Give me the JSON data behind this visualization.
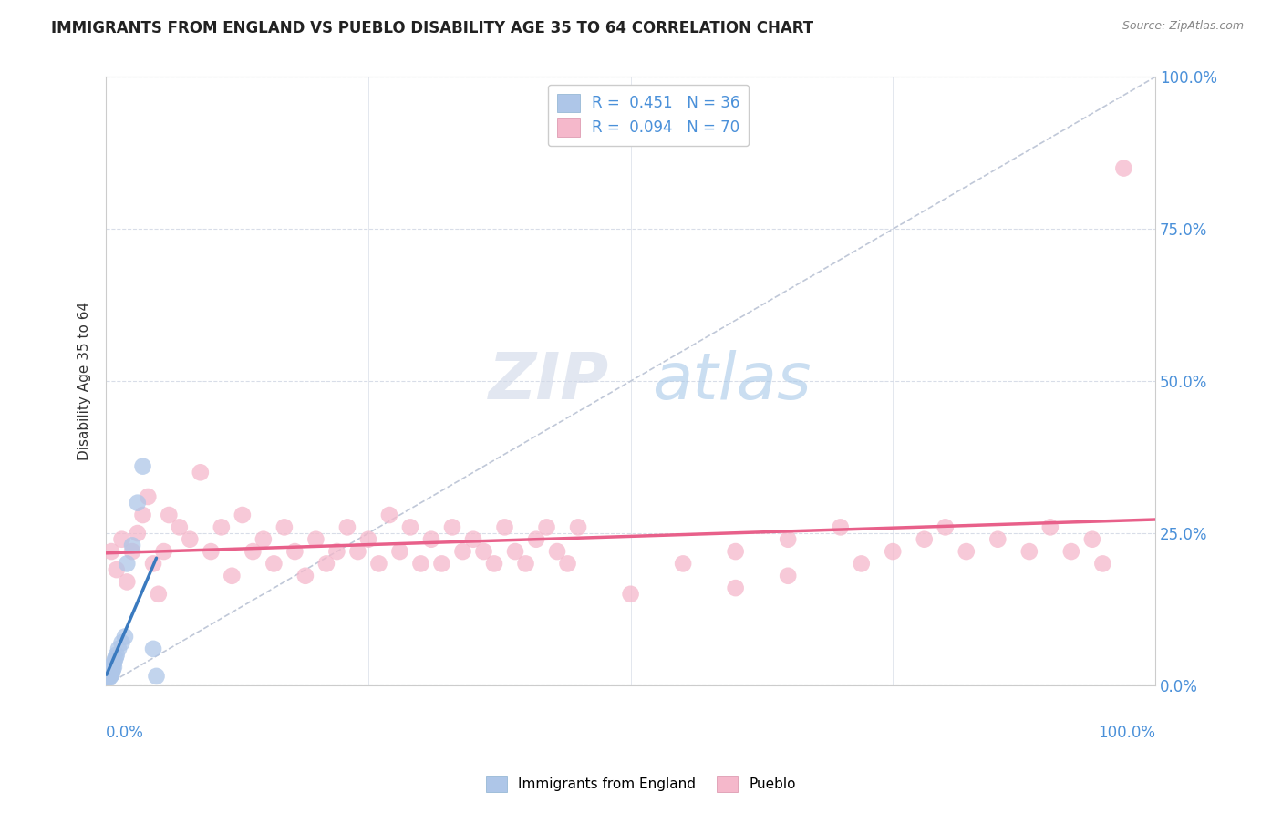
{
  "title": "IMMIGRANTS FROM ENGLAND VS PUEBLO DISABILITY AGE 35 TO 64 CORRELATION CHART",
  "source": "Source: ZipAtlas.com",
  "ylabel": "Disability Age 35 to 64",
  "ylabel_right_ticks": [
    "0.0%",
    "25.0%",
    "50.0%",
    "75.0%",
    "100.0%"
  ],
  "ylabel_right_vals": [
    0.0,
    25.0,
    50.0,
    75.0,
    100.0
  ],
  "legend_label_blue": "Immigrants from England",
  "legend_label_pink": "Pueblo",
  "R_blue": "0.451",
  "N_blue": "36",
  "R_pink": "0.094",
  "N_pink": "70",
  "blue_color": "#aec6e8",
  "pink_color": "#f5b8cb",
  "blue_line_color": "#3a7abf",
  "pink_line_color": "#e8608a",
  "scatter_blue": [
    [
      0.05,
      2.0
    ],
    [
      0.08,
      1.5
    ],
    [
      0.1,
      1.8
    ],
    [
      0.12,
      2.2
    ],
    [
      0.15,
      1.2
    ],
    [
      0.18,
      2.5
    ],
    [
      0.2,
      1.0
    ],
    [
      0.22,
      1.5
    ],
    [
      0.25,
      2.8
    ],
    [
      0.28,
      1.8
    ],
    [
      0.3,
      2.0
    ],
    [
      0.32,
      1.6
    ],
    [
      0.35,
      2.4
    ],
    [
      0.38,
      1.4
    ],
    [
      0.4,
      2.1
    ],
    [
      0.42,
      1.9
    ],
    [
      0.45,
      2.6
    ],
    [
      0.48,
      2.3
    ],
    [
      0.5,
      1.7
    ],
    [
      0.55,
      2.0
    ],
    [
      0.6,
      3.0
    ],
    [
      0.65,
      2.5
    ],
    [
      0.7,
      3.5
    ],
    [
      0.75,
      3.0
    ],
    [
      0.8,
      4.0
    ],
    [
      0.9,
      4.5
    ],
    [
      1.0,
      5.0
    ],
    [
      1.2,
      6.0
    ],
    [
      1.5,
      7.0
    ],
    [
      1.8,
      8.0
    ],
    [
      2.0,
      20.0
    ],
    [
      2.5,
      23.0
    ],
    [
      3.0,
      30.0
    ],
    [
      3.5,
      36.0
    ],
    [
      4.5,
      6.0
    ],
    [
      4.8,
      1.5
    ]
  ],
  "scatter_pink": [
    [
      0.5,
      22.0
    ],
    [
      1.0,
      19.0
    ],
    [
      1.5,
      24.0
    ],
    [
      2.0,
      17.0
    ],
    [
      2.5,
      22.0
    ],
    [
      3.0,
      25.0
    ],
    [
      3.5,
      28.0
    ],
    [
      4.0,
      31.0
    ],
    [
      4.5,
      20.0
    ],
    [
      5.0,
      15.0
    ],
    [
      5.5,
      22.0
    ],
    [
      6.0,
      28.0
    ],
    [
      7.0,
      26.0
    ],
    [
      8.0,
      24.0
    ],
    [
      9.0,
      35.0
    ],
    [
      10.0,
      22.0
    ],
    [
      11.0,
      26.0
    ],
    [
      12.0,
      18.0
    ],
    [
      13.0,
      28.0
    ],
    [
      14.0,
      22.0
    ],
    [
      15.0,
      24.0
    ],
    [
      16.0,
      20.0
    ],
    [
      17.0,
      26.0
    ],
    [
      18.0,
      22.0
    ],
    [
      19.0,
      18.0
    ],
    [
      20.0,
      24.0
    ],
    [
      21.0,
      20.0
    ],
    [
      22.0,
      22.0
    ],
    [
      23.0,
      26.0
    ],
    [
      24.0,
      22.0
    ],
    [
      25.0,
      24.0
    ],
    [
      26.0,
      20.0
    ],
    [
      27.0,
      28.0
    ],
    [
      28.0,
      22.0
    ],
    [
      29.0,
      26.0
    ],
    [
      30.0,
      20.0
    ],
    [
      31.0,
      24.0
    ],
    [
      32.0,
      20.0
    ],
    [
      33.0,
      26.0
    ],
    [
      34.0,
      22.0
    ],
    [
      35.0,
      24.0
    ],
    [
      36.0,
      22.0
    ],
    [
      37.0,
      20.0
    ],
    [
      38.0,
      26.0
    ],
    [
      39.0,
      22.0
    ],
    [
      40.0,
      20.0
    ],
    [
      41.0,
      24.0
    ],
    [
      42.0,
      26.0
    ],
    [
      43.0,
      22.0
    ],
    [
      44.0,
      20.0
    ],
    [
      45.0,
      26.0
    ],
    [
      50.0,
      15.0
    ],
    [
      55.0,
      20.0
    ],
    [
      60.0,
      22.0
    ],
    [
      60.0,
      16.0
    ],
    [
      65.0,
      24.0
    ],
    [
      65.0,
      18.0
    ],
    [
      70.0,
      26.0
    ],
    [
      72.0,
      20.0
    ],
    [
      75.0,
      22.0
    ],
    [
      78.0,
      24.0
    ],
    [
      80.0,
      26.0
    ],
    [
      82.0,
      22.0
    ],
    [
      85.0,
      24.0
    ],
    [
      88.0,
      22.0
    ],
    [
      90.0,
      26.0
    ],
    [
      92.0,
      22.0
    ],
    [
      94.0,
      24.0
    ],
    [
      95.0,
      20.0
    ],
    [
      97.0,
      85.0
    ]
  ],
  "watermark_zip": "ZIP",
  "watermark_atlas": "atlas",
  "xmin": 0.0,
  "xmax": 100.0,
  "ymin": 0.0,
  "ymax": 100.0,
  "grid_color": "#d8dde8",
  "diag_color": "#c0c8d8"
}
